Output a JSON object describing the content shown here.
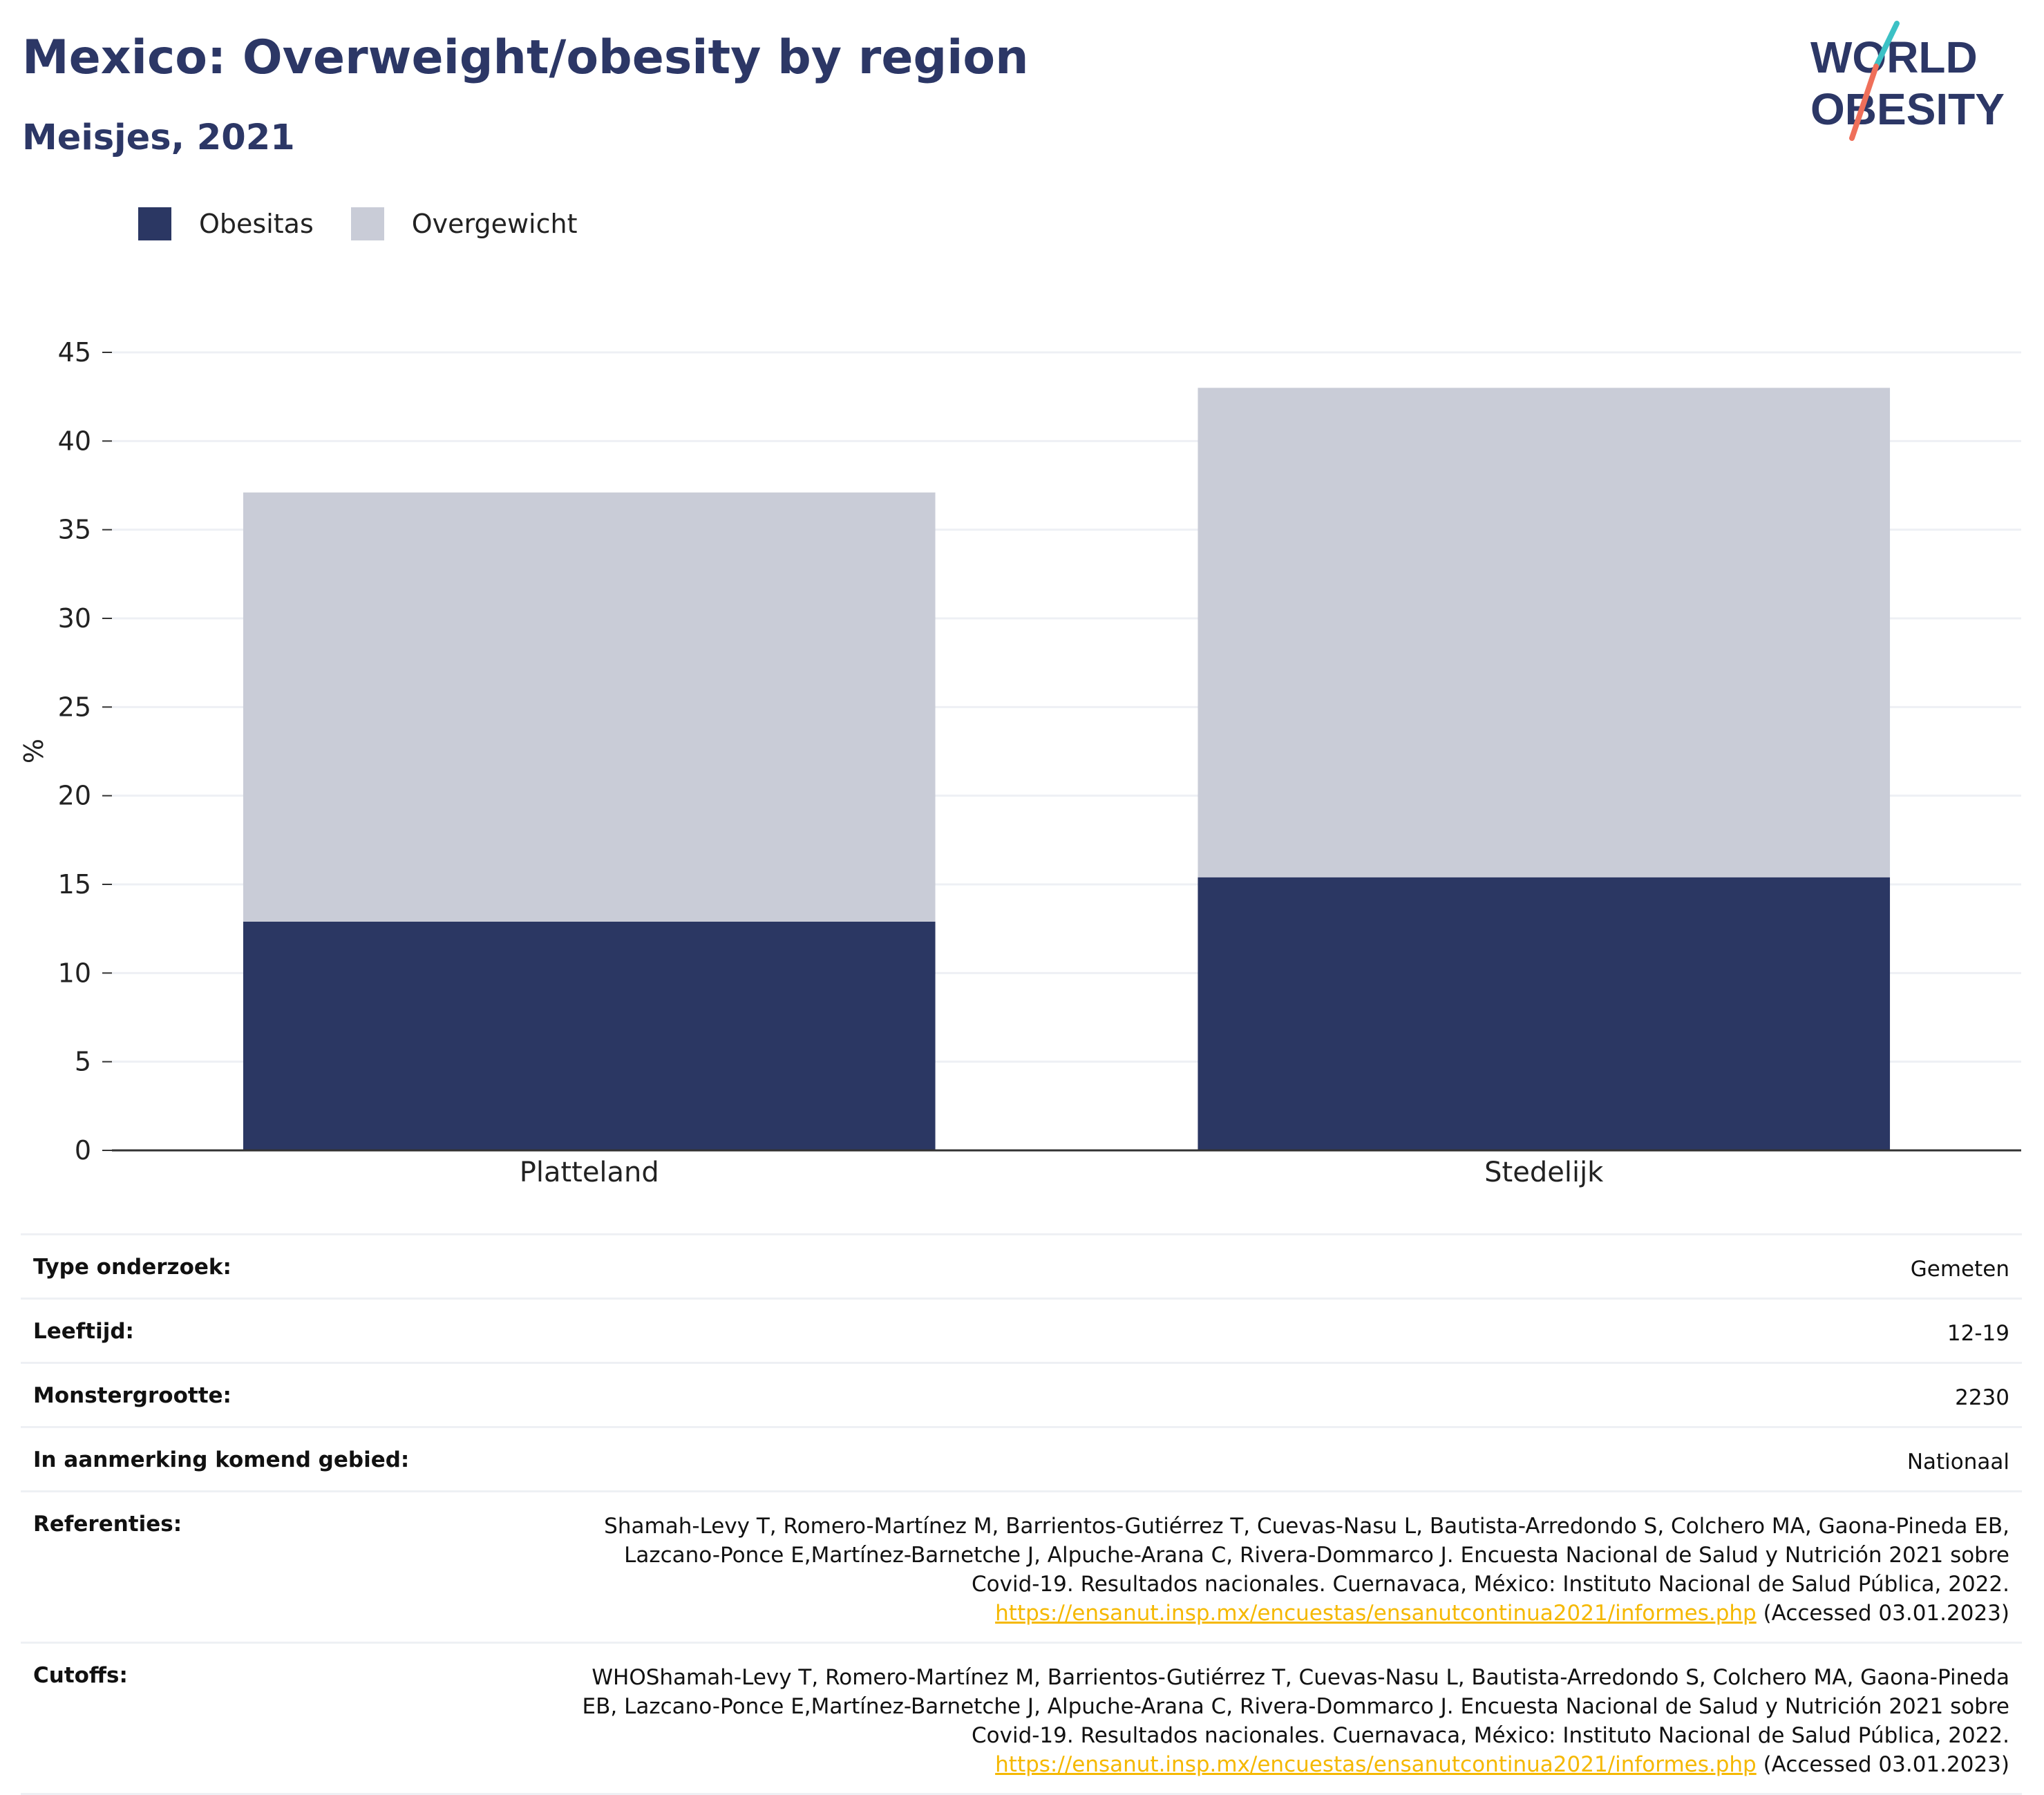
{
  "header": {
    "title": "Mexico: Overweight/obesity by region",
    "subtitle": "Meisjes, 2021"
  },
  "logo": {
    "line1": "WORLD",
    "line2": "OBESITY",
    "colors": {
      "text": "#2c3766",
      "slash_top": "#3cc1c5",
      "slash_bottom": "#ef6f5a"
    }
  },
  "colors": {
    "obesitas": "#2b3763",
    "overgewicht": "#c9ccd7",
    "grid": "#eef0f4",
    "axis": "#333333"
  },
  "chart_data": {
    "type": "bar",
    "stacked": true,
    "categories": [
      "Platteland",
      "Stedelijk"
    ],
    "series": [
      {
        "name": "Obesitas",
        "values": [
          12.9,
          15.4
        ]
      },
      {
        "name": "Overgewicht",
        "values": [
          24.2,
          27.6
        ]
      }
    ],
    "ylabel": "%",
    "xlabel": "",
    "ylim": [
      0,
      45
    ],
    "yticks": [
      "0",
      "5",
      "10",
      "15",
      "20",
      "25",
      "30",
      "35",
      "40",
      "45"
    ],
    "grid": true,
    "legend_position": "top-left"
  },
  "info": [
    {
      "label": "Type onderzoek:",
      "value": "Gemeten"
    },
    {
      "label": "Leeftijd:",
      "value": "12-19"
    },
    {
      "label": "Monstergrootte:",
      "value": "2230"
    },
    {
      "label": "In aanmerking komend gebied:",
      "value": "Nationaal"
    },
    {
      "label": "Referenties:",
      "lines": [
        "Shamah-Levy T, Romero-Martínez M, Barrientos-Gutiérrez T, Cuevas-Nasu L, Bautista-Arredondo S, Colchero MA, Gaona-Pineda EB,",
        "Lazcano-Ponce E,Martínez-Barnetche J, Alpuche-Arana C, Rivera-Dommarco J. Encuesta Nacional de Salud y Nutrición 2021 sobre",
        "Covid-19. Resultados nacionales. Cuernavaca, México: Instituto Nacional de Salud Pública, 2022."
      ],
      "link": "https://ensanut.insp.mx/encuestas/ensanutcontinua2021/informes.php",
      "accessed": " (Accessed 03.01.2023)"
    },
    {
      "label": "Cutoffs:",
      "lines": [
        "WHOShamah-Levy T, Romero-Martínez M, Barrientos-Gutiérrez T, Cuevas-Nasu L, Bautista-Arredondo S, Colchero MA, Gaona-Pineda",
        "EB, Lazcano-Ponce E,Martínez-Barnetche J, Alpuche-Arana C, Rivera-Dommarco J. Encuesta Nacional de Salud y Nutrición 2021 sobre",
        "Covid-19. Resultados nacionales. Cuernavaca, México: Instituto Nacional de Salud Pública, 2022."
      ],
      "link": "https://ensanut.insp.mx/encuestas/ensanutcontinua2021/informes.php",
      "accessed": " (Accessed 03.01.2023)"
    }
  ]
}
